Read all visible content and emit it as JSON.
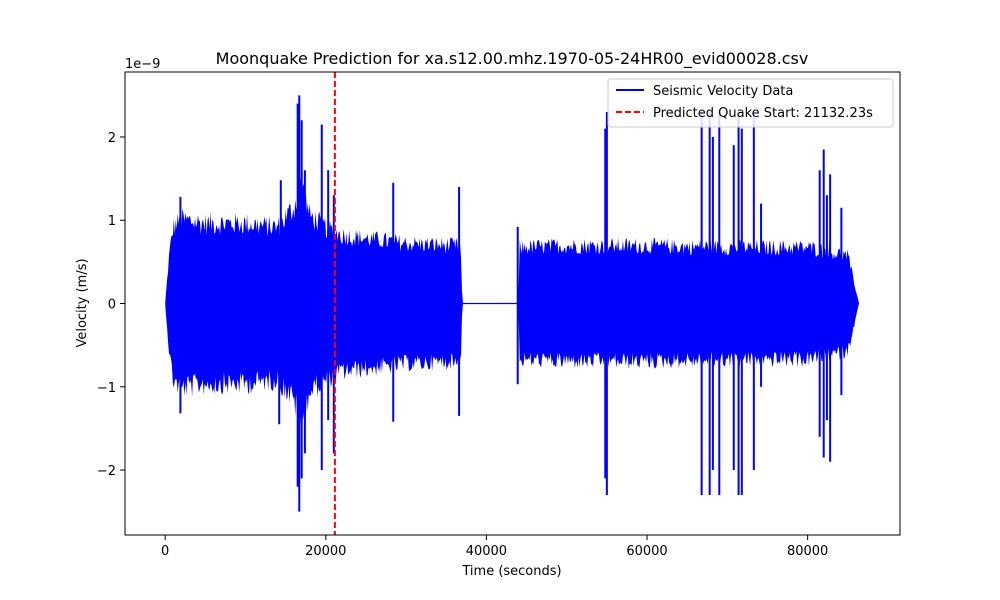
{
  "chart_data": {
    "type": "line",
    "title": "Moonquake Prediction for xa.s12.00.mhz.1970-05-24HR00_evid00028.csv",
    "xlabel": "Time (seconds)",
    "ylabel": "Velocity (m/s)",
    "y_offset_label": "1e−9",
    "xlim": [
      -5000,
      91500
    ],
    "ylim": [
      -2.78,
      2.78
    ],
    "y_scale_factor": 1e-09,
    "x_ticks": [
      0,
      20000,
      40000,
      60000,
      80000
    ],
    "x_tick_labels": [
      "0",
      "20000",
      "40000",
      "60000",
      "80000"
    ],
    "y_ticks": [
      -2,
      -1,
      0,
      1,
      2
    ],
    "y_tick_labels": [
      "−2",
      "−1",
      "0",
      "1",
      "2"
    ],
    "grid": false,
    "legend_position": "top-right",
    "series": [
      {
        "name": "Seismic Velocity Data",
        "color": "#0000ff",
        "time_range": [
          0,
          86400
        ],
        "gap_range": [
          37000,
          44000
        ],
        "envelope": [
          {
            "x": 0,
            "y": 0.0
          },
          {
            "x": 500,
            "y": 0.6
          },
          {
            "x": 1000,
            "y": 0.95
          },
          {
            "x": 2000,
            "y": 1.05
          },
          {
            "x": 5000,
            "y": 1.0
          },
          {
            "x": 10000,
            "y": 1.0
          },
          {
            "x": 14000,
            "y": 0.95
          },
          {
            "x": 16000,
            "y": 1.2
          },
          {
            "x": 17000,
            "y": 1.5
          },
          {
            "x": 18000,
            "y": 1.1
          },
          {
            "x": 20000,
            "y": 0.95
          },
          {
            "x": 22000,
            "y": 0.85
          },
          {
            "x": 30000,
            "y": 0.75
          },
          {
            "x": 36800,
            "y": 0.72
          },
          {
            "x": 37000,
            "y": 0.0
          },
          {
            "x": 44000,
            "y": 0.0
          },
          {
            "x": 44100,
            "y": 0.7
          },
          {
            "x": 50000,
            "y": 0.72
          },
          {
            "x": 60000,
            "y": 0.72
          },
          {
            "x": 70000,
            "y": 0.7
          },
          {
            "x": 80000,
            "y": 0.7
          },
          {
            "x": 85000,
            "y": 0.6
          },
          {
            "x": 86400,
            "y": 0.0
          }
        ],
        "spikes": [
          {
            "x": 1900,
            "ymax": 1.28,
            "ymin": -1.32
          },
          {
            "x": 14200,
            "ymax": 0.0,
            "ymin": -1.45
          },
          {
            "x": 14400,
            "ymax": 1.48,
            "ymin": 0.0
          },
          {
            "x": 16500,
            "ymax": 2.4,
            "ymin": -2.2
          },
          {
            "x": 16700,
            "ymax": 2.5,
            "ymin": -2.5
          },
          {
            "x": 17000,
            "ymax": 2.2,
            "ymin": -2.1
          },
          {
            "x": 17400,
            "ymax": 1.6,
            "ymin": -1.8
          },
          {
            "x": 19500,
            "ymax": 2.15,
            "ymin": -2.0
          },
          {
            "x": 20300,
            "ymax": 1.6,
            "ymin": -1.4
          },
          {
            "x": 21000,
            "ymax": 1.3,
            "ymin": -1.8
          },
          {
            "x": 28400,
            "ymax": 1.45,
            "ymin": -1.42
          },
          {
            "x": 36600,
            "ymax": 1.4,
            "ymin": -1.35
          },
          {
            "x": 43900,
            "ymax": 0.92,
            "ymin": -0.97
          },
          {
            "x": 54800,
            "ymax": 2.1,
            "ymin": -2.1
          },
          {
            "x": 55000,
            "ymax": 2.3,
            "ymin": -2.3
          },
          {
            "x": 66800,
            "ymax": 2.3,
            "ymin": -2.3
          },
          {
            "x": 67800,
            "ymax": 2.3,
            "ymin": -2.3
          },
          {
            "x": 68200,
            "ymax": 2.0,
            "ymin": -2.0
          },
          {
            "x": 69000,
            "ymax": 2.3,
            "ymin": -2.3
          },
          {
            "x": 70800,
            "ymax": 1.9,
            "ymin": -2.0
          },
          {
            "x": 71400,
            "ymax": 2.3,
            "ymin": -2.3
          },
          {
            "x": 71800,
            "ymax": 2.1,
            "ymin": -2.3
          },
          {
            "x": 73300,
            "ymax": 2.3,
            "ymin": -2.0
          },
          {
            "x": 74200,
            "ymax": 1.2,
            "ymin": -1.0
          },
          {
            "x": 81500,
            "ymax": 1.6,
            "ymin": -1.6
          },
          {
            "x": 82000,
            "ymax": 1.85,
            "ymin": -1.85
          },
          {
            "x": 82400,
            "ymax": 1.3,
            "ymin": -1.4
          },
          {
            "x": 82800,
            "ymax": 1.55,
            "ymin": -1.9
          },
          {
            "x": 84200,
            "ymax": 1.15,
            "ymin": -1.1
          }
        ]
      }
    ],
    "annotations": [
      {
        "type": "vline",
        "x": 21132.23,
        "color": "#ff0000",
        "style": "dashed",
        "label": "Predicted Quake Start: 21132.23s"
      }
    ]
  }
}
